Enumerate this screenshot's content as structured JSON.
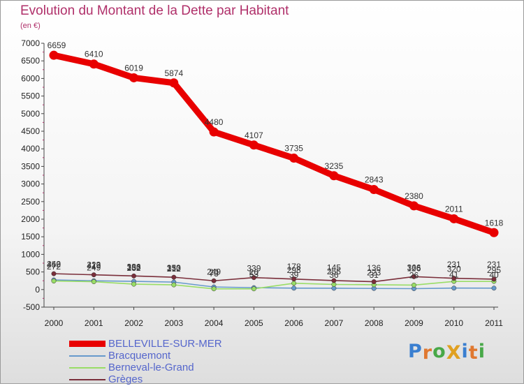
{
  "title": "Evolution du Montant de la Dette par Habitant",
  "subtitle": "(en €)",
  "logo": {
    "text": "ProXiti",
    "letter_colors": [
      "#3a7fd0",
      "#e07830",
      "#48a848",
      "#e0a020",
      "#3a7fd0",
      "#e07830",
      "#48a848"
    ]
  },
  "chart_data": {
    "type": "line",
    "title": "Evolution du Montant de la Dette par Habitant",
    "subtitle": "(en €)",
    "x": [
      "2000",
      "2001",
      "2002",
      "2003",
      "2004",
      "2005",
      "2006",
      "2007",
      "2008",
      "2009",
      "2010",
      "2011"
    ],
    "ylim": [
      -500,
      7000
    ],
    "yticks": [
      -500,
      0,
      500,
      1000,
      1500,
      2000,
      2500,
      3000,
      3500,
      4000,
      4500,
      5000,
      5500,
      6000,
      6500,
      7000
    ],
    "grid": false,
    "legend_position": "bottom-left",
    "series": [
      {
        "name": "BELLEVILLE-SUR-MER",
        "color": "#e80000",
        "values": [
          6659,
          6410,
          6019,
          5874,
          4480,
          4107,
          3735,
          3235,
          2843,
          2380,
          2011,
          1618
        ],
        "labels": [
          "6659",
          "6410",
          "6019",
          "5874",
          "4480",
          "4107",
          "3735",
          "3235",
          "2843",
          "2380",
          "2011",
          "1618"
        ]
      },
      {
        "name": "Bracquemont",
        "color": "#6699cc",
        "values": [
          272,
          249,
          232,
          212,
          73,
          53,
          39,
          36,
          31,
          26,
          41,
          40
        ],
        "labels": [
          "272",
          "249",
          "232",
          "212",
          "73",
          "53",
          "39",
          "36",
          "31",
          "26",
          "41",
          "40"
        ]
      },
      {
        "name": "Berneval-le-Grand",
        "color": "#99dd66",
        "values": [
          242,
          223,
          153,
          133,
          20,
          20,
          178,
          145,
          136,
          126,
          231,
          231
        ],
        "labels": [
          "242",
          "223",
          "153",
          "133",
          "20",
          "20",
          "178",
          "145",
          "136",
          "126",
          "231",
          "231"
        ]
      },
      {
        "name": "Grèges",
        "color": "#7a2e3a",
        "values": [
          450,
          419,
          386,
          350,
          249,
          339,
          298,
          255,
          223,
          366,
          320,
          295
        ],
        "labels": [
          "450",
          "419",
          "386",
          "350",
          "249",
          "339",
          "298",
          "255",
          "223",
          "366",
          "320",
          "295"
        ]
      }
    ]
  }
}
